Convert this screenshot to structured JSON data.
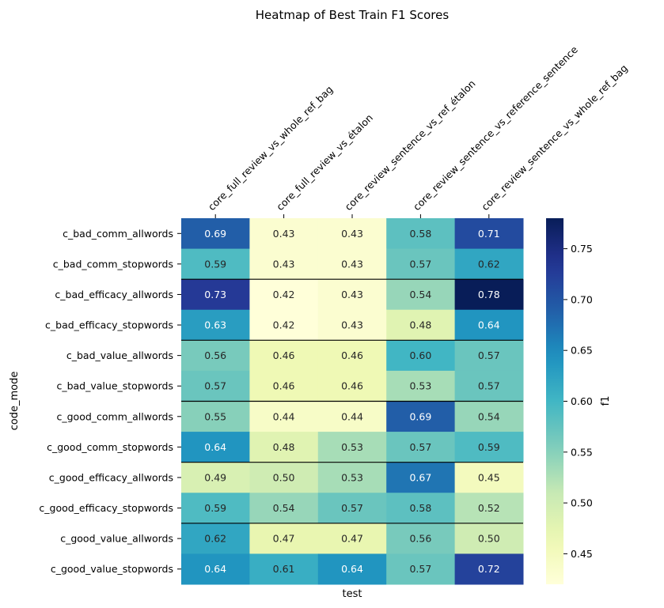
{
  "chart_data": {
    "type": "heatmap",
    "title": "Heatmap of Best Train F1 Scores",
    "xlabel": "test",
    "ylabel": "code_mode",
    "colorbar_label": "f1",
    "colormap": "YlGnBu",
    "vmin": 0.42,
    "vmax": 0.78,
    "colorbar_ticks": [
      "0.45",
      "0.50",
      "0.55",
      "0.60",
      "0.65",
      "0.70",
      "0.75"
    ],
    "columns": [
      "core_full_review_vs_whole_ref_bag",
      "core_full_review_vs_étalon",
      "core_review_sentence_vs_ref_étalon",
      "core_review_sentence_vs_reference_sentence",
      "core_review_sentence_vs_whole_ref_bag"
    ],
    "rows": [
      "c_bad_comm_allwords",
      "c_bad_comm_stopwords",
      "c_bad_efficacy_allwords",
      "c_bad_efficacy_stopwords",
      "c_bad_value_allwords",
      "c_bad_value_stopwords",
      "c_good_comm_allwords",
      "c_good_comm_stopwords",
      "c_good_efficacy_allwords",
      "c_good_efficacy_stopwords",
      "c_good_value_allwords",
      "c_good_value_stopwords"
    ],
    "values": [
      [
        0.69,
        0.43,
        0.43,
        0.58,
        0.71
      ],
      [
        0.59,
        0.43,
        0.43,
        0.57,
        0.62
      ],
      [
        0.73,
        0.42,
        0.43,
        0.54,
        0.78
      ],
      [
        0.63,
        0.42,
        0.43,
        0.48,
        0.64
      ],
      [
        0.56,
        0.46,
        0.46,
        0.6,
        0.57
      ],
      [
        0.57,
        0.46,
        0.46,
        0.53,
        0.57
      ],
      [
        0.55,
        0.44,
        0.44,
        0.69,
        0.54
      ],
      [
        0.64,
        0.48,
        0.53,
        0.57,
        0.59
      ],
      [
        0.49,
        0.5,
        0.53,
        0.67,
        0.45
      ],
      [
        0.59,
        0.54,
        0.57,
        0.58,
        0.52
      ],
      [
        0.62,
        0.47,
        0.47,
        0.56,
        0.5
      ],
      [
        0.64,
        0.61,
        0.64,
        0.57,
        0.72
      ]
    ],
    "group_separators_after_rows": [
      2,
      4,
      6,
      8,
      10
    ]
  }
}
